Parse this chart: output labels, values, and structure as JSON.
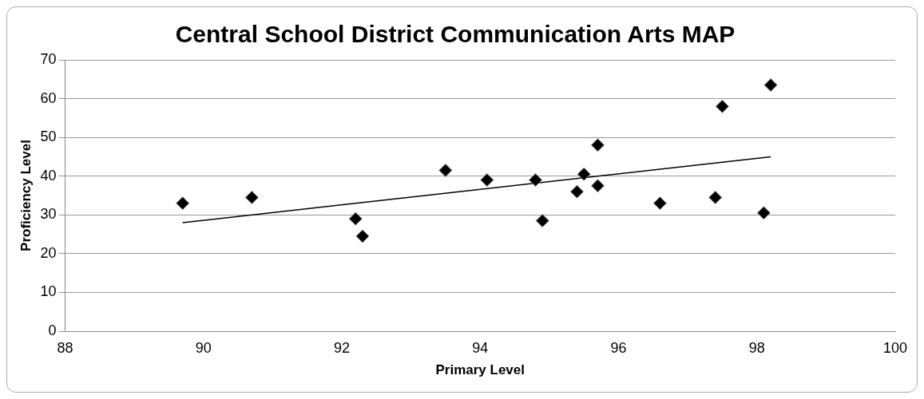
{
  "chart_data": {
    "type": "scatter",
    "title": "Central School District Communication Arts MAP",
    "xlabel": "Primary Level",
    "ylabel": "Proficiency Level",
    "series": [
      {
        "color": "#000000",
        "marker": "diamond",
        "x": [
          89.7,
          90.7,
          92.2,
          92.3,
          93.5,
          94.1,
          94.8,
          94.9,
          95.4,
          95.5,
          95.7,
          95.7,
          96.6,
          97.4,
          97.5,
          98.1,
          98.2
        ],
        "values": [
          33,
          34.5,
          29,
          24.5,
          41.5,
          39,
          39,
          28.5,
          36,
          40.5,
          48,
          37.5,
          33,
          34.5,
          58,
          30.5,
          63.5
        ]
      },
      {
        "type": "line",
        "color": "#000000",
        "marker": "none",
        "x": [
          89.7,
          98.2
        ],
        "values": [
          28,
          45
        ]
      }
    ],
    "xlim": [
      88,
      100
    ],
    "xticks": [
      88,
      90,
      92,
      94,
      96,
      98,
      100
    ],
    "ylim": [
      0,
      70
    ],
    "yticks": [
      0,
      10,
      20,
      30,
      40,
      50,
      60,
      70
    ],
    "grid": "y",
    "legend": false
  }
}
